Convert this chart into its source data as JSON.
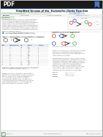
{
  "bg_color": "#d0d0d0",
  "page_bg": "#ffffff",
  "pdf_bar_color": "#1a1a1a",
  "blue_accent": "#4472c4",
  "green_accent": "#2e7d32",
  "orange_accent": "#e65c00",
  "abstract_bg": "#e8f4e8",
  "title_color": "#111111",
  "text_color": "#333333",
  "light_text": "#555555",
  "table_line_color": "#aaaaaa",
  "link_bar_bg": "#e8f0e8",
  "metrics_bg": "#f5f5f5",
  "red_mol": "#cc3333",
  "blue_mol": "#3344cc",
  "green_mol": "#33aa33"
}
